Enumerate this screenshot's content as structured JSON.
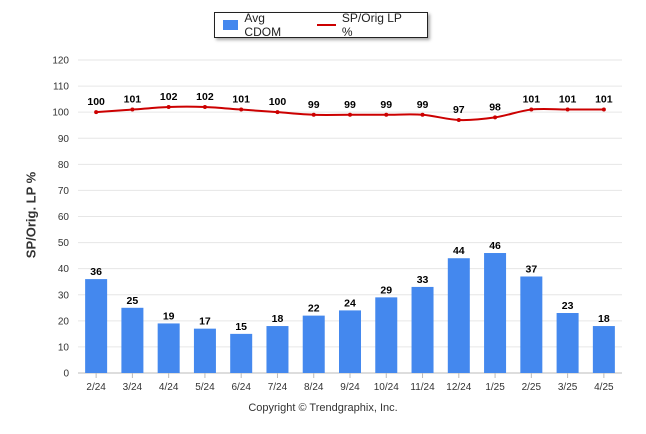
{
  "chart_data": {
    "type": "bar",
    "categories": [
      "2/24",
      "3/24",
      "4/24",
      "5/24",
      "6/24",
      "7/24",
      "8/24",
      "9/24",
      "10/24",
      "11/24",
      "12/24",
      "1/25",
      "2/25",
      "3/25",
      "4/25"
    ],
    "series": [
      {
        "name": "Avg CDOM",
        "kind": "bar",
        "color": "#4488ee",
        "values": [
          36,
          25,
          19,
          17,
          15,
          18,
          22,
          24,
          29,
          33,
          44,
          46,
          37,
          23,
          18
        ]
      },
      {
        "name": "SP/Orig LP %",
        "kind": "line",
        "color": "#cc0000",
        "values": [
          100,
          101,
          102,
          102,
          101,
          100,
          99,
          99,
          99,
          99,
          97,
          98,
          101,
          101,
          101
        ]
      }
    ],
    "ylabel": "SP/Orig. LP %",
    "ylim": [
      0,
      120
    ],
    "yticks": [
      0,
      10,
      20,
      30,
      40,
      50,
      60,
      70,
      80,
      90,
      100,
      110,
      120
    ],
    "grid": true,
    "legend_position": "top-center"
  },
  "footer": "Copyright © Trendgraphix, Inc."
}
